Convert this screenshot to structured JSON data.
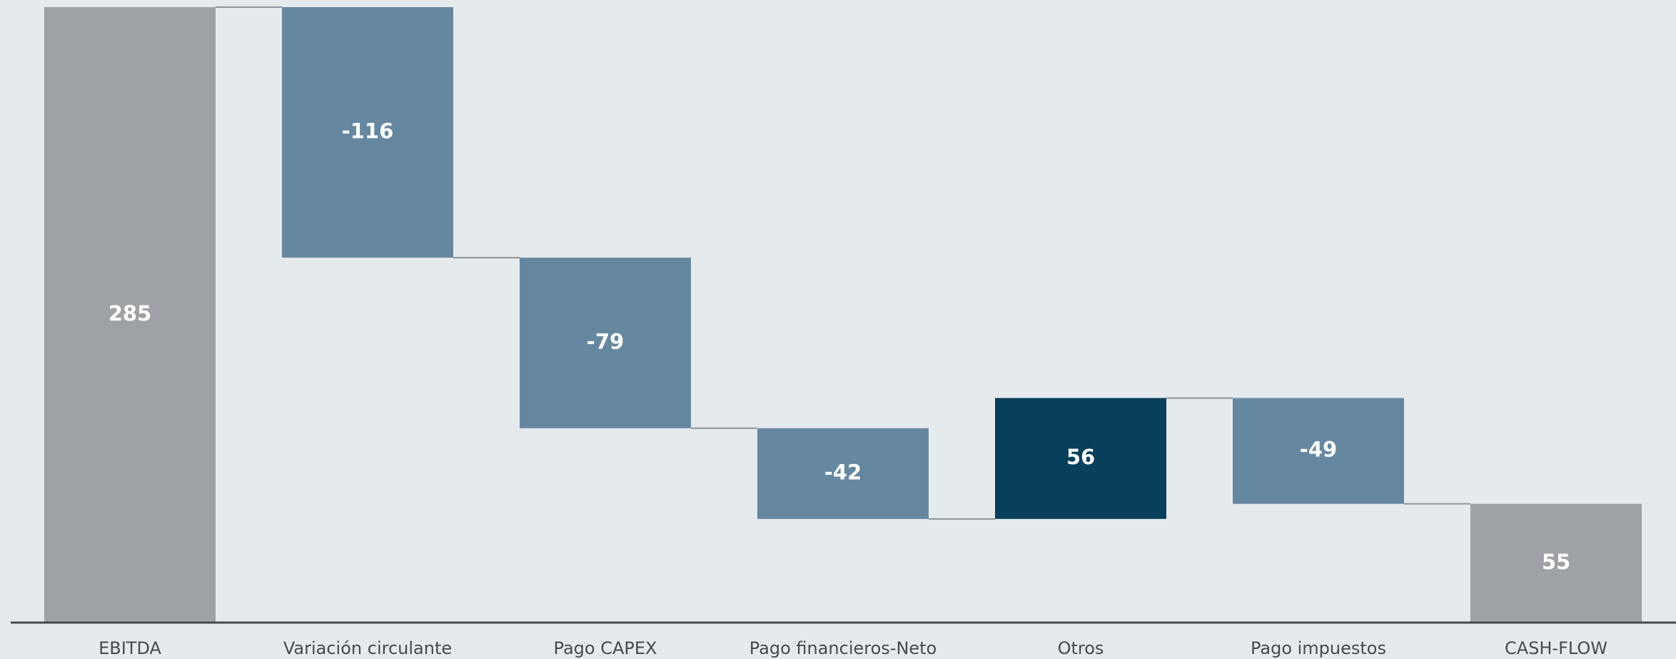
{
  "chart_data": {
    "type": "waterfall",
    "categories": [
      "EBITDA",
      "Variación circulante",
      "Pago CAPEX",
      "Pago financieros-Neto",
      "Otros",
      "Pago impuestos",
      "CASH-FLOW"
    ],
    "values": [
      285,
      -116,
      -79,
      -42,
      56,
      -49,
      55
    ],
    "measure": [
      "absolute",
      "relative",
      "relative",
      "relative",
      "relative",
      "relative",
      "absolute"
    ],
    "colors": [
      "#9ea1a5",
      "#6687a0",
      "#6687a0",
      "#6687a0",
      "#083f5a",
      "#6687a0",
      "#9ea1a5"
    ],
    "connector_color": "#8f9499"
  }
}
